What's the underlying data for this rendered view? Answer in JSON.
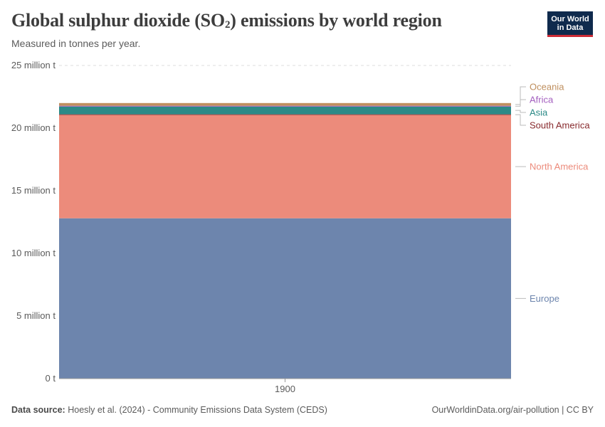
{
  "header": {
    "title_main": "Global sulphur dioxide (SO",
    "title_sub": "2",
    "title_end": ") emissions by world region",
    "subtitle": "Measured in tonnes per year."
  },
  "logo": {
    "line1": "Our World",
    "line2": "in Data"
  },
  "footer": {
    "source_label": "Data source:",
    "source_text": "Hoesly et al. (2024) - Community Emissions Data System (CEDS)",
    "url_text": "OurWorldinData.org/air-pollution | CC BY"
  },
  "chart_data": {
    "type": "area",
    "stacked": true,
    "title": "Global sulphur dioxide (SO2) emissions by world region",
    "subtitle": "Measured in tonnes per year.",
    "xlabel": "",
    "ylabel": "",
    "categories": [
      "1900"
    ],
    "ylim": [
      0,
      25000000
    ],
    "yticks": [
      0,
      5000000,
      10000000,
      15000000,
      20000000,
      25000000
    ],
    "ytick_labels": [
      "0 t",
      "5 million t",
      "10 million t",
      "15 million t",
      "20 million t",
      "25 million t"
    ],
    "grid": true,
    "legend_position": "right",
    "series": [
      {
        "name": "Europe",
        "values": [
          12800000
        ],
        "color": "#6d85ad"
      },
      {
        "name": "North America",
        "values": [
          8250000
        ],
        "color": "#ec8b7b"
      },
      {
        "name": "South America",
        "values": [
          50000
        ],
        "color": "#882b2e"
      },
      {
        "name": "Asia",
        "values": [
          620000
        ],
        "color": "#2c8a87"
      },
      {
        "name": "Africa",
        "values": [
          60000
        ],
        "color": "#a35fbf"
      },
      {
        "name": "Oceania",
        "values": [
          220000
        ],
        "color": "#bf8f5e"
      }
    ]
  }
}
